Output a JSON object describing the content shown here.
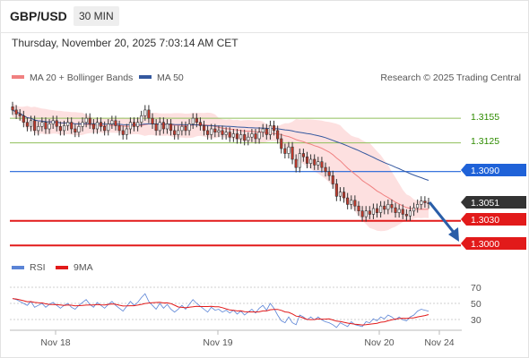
{
  "header": {
    "symbol": "GBP/USD",
    "timeframe": "30 MIN"
  },
  "datetime": "Thursday, November 20, 2025 7:03:14 AM CET",
  "legend": {
    "bollinger": "MA 20 + Bollinger Bands",
    "ma50": "MA 50",
    "rsi": "RSI",
    "rsi_ma": "9MA"
  },
  "credit": "Research © 2025 Trading Central",
  "colors": {
    "bollinger": "#f08080",
    "band_fill": "#fde0e0",
    "ma50": "#34589f",
    "support": "#e21a1a",
    "pivot": "#1f62d8",
    "resistance": "#8fbf5a",
    "last": "#333333",
    "rsi": "#5b84d6",
    "candle_up": "#ffffff",
    "candle_down": "#c0392b",
    "arrow": "#2a5ea8"
  },
  "chart_data": [
    {
      "type": "candlestick",
      "title": "",
      "x_ticks": [
        "Nov 18",
        "Nov 19",
        "Nov 20",
        "Nov 24"
      ],
      "ylim": [
        1.2985,
        1.319
      ],
      "levels": [
        {
          "value": 1.3155,
          "label": "1.3155",
          "kind": "resistance"
        },
        {
          "value": 1.3125,
          "label": "1.3125",
          "kind": "resistance"
        },
        {
          "value": 1.309,
          "label": "1.3090",
          "kind": "pivot"
        },
        {
          "value": 1.3051,
          "label": "1.3051",
          "kind": "last"
        },
        {
          "value": 1.303,
          "label": "1.3030",
          "kind": "support"
        },
        {
          "value": 1.3,
          "label": "1.3000",
          "kind": "support"
        }
      ],
      "close": [
        1.3165,
        1.316,
        1.3158,
        1.315,
        1.3145,
        1.3152,
        1.314,
        1.3145,
        1.315,
        1.3142,
        1.3148,
        1.3152,
        1.3145,
        1.314,
        1.3146,
        1.315,
        1.3142,
        1.3138,
        1.3145,
        1.315,
        1.3155,
        1.3148,
        1.3142,
        1.315,
        1.3145,
        1.314,
        1.3148,
        1.3152,
        1.3146,
        1.314,
        1.3135,
        1.3142,
        1.315,
        1.3145,
        1.315,
        1.3158,
        1.3165,
        1.3155,
        1.3148,
        1.314,
        1.315,
        1.3142,
        1.3148,
        1.314,
        1.3135,
        1.314,
        1.3145,
        1.314,
        1.3148,
        1.3155,
        1.315,
        1.3146,
        1.314,
        1.3135,
        1.3142,
        1.3138,
        1.314,
        1.3135,
        1.3138,
        1.3132,
        1.3136,
        1.313,
        1.3135,
        1.3128,
        1.3132,
        1.3136,
        1.313,
        1.3138,
        1.3142,
        1.3135,
        1.3146,
        1.314,
        1.313,
        1.3118,
        1.3112,
        1.312,
        1.3105,
        1.3095,
        1.3112,
        1.3108,
        1.31,
        1.3105,
        1.3098,
        1.3102,
        1.3095,
        1.309,
        1.3085,
        1.3075,
        1.306,
        1.3065,
        1.3058,
        1.305,
        1.3055,
        1.3048,
        1.3042,
        1.3035,
        1.3042,
        1.3038,
        1.3045,
        1.304,
        1.3048,
        1.3044,
        1.305,
        1.3046,
        1.304,
        1.3044,
        1.3038,
        1.3036,
        1.3042,
        1.3046,
        1.305,
        1.3054,
        1.3052,
        1.3051
      ]
    },
    {
      "type": "line",
      "title": "",
      "ylim": [
        25,
        75
      ],
      "y_ticks": [
        70,
        50,
        30
      ],
      "rsi": [
        55,
        54,
        52,
        50,
        48,
        52,
        46,
        48,
        50,
        46,
        49,
        51,
        48,
        45,
        48,
        50,
        46,
        44,
        48,
        51,
        54,
        49,
        46,
        51,
        48,
        45,
        49,
        52,
        48,
        45,
        42,
        47,
        52,
        48,
        51,
        56,
        60,
        52,
        48,
        44,
        50,
        45,
        49,
        44,
        41,
        44,
        48,
        44,
        49,
        54,
        50,
        47,
        44,
        41,
        46,
        43,
        44,
        41,
        43,
        40,
        43,
        39,
        42,
        38,
        41,
        44,
        40,
        45,
        48,
        43,
        50,
        45,
        38,
        32,
        30,
        36,
        30,
        28,
        38,
        36,
        33,
        36,
        33,
        36,
        33,
        31,
        30,
        28,
        25,
        30,
        28,
        26,
        31,
        28,
        27,
        26,
        31,
        30,
        34,
        32,
        36,
        34,
        38,
        36,
        33,
        36,
        33,
        32,
        36,
        38,
        42,
        44,
        43,
        42
      ]
    }
  ]
}
